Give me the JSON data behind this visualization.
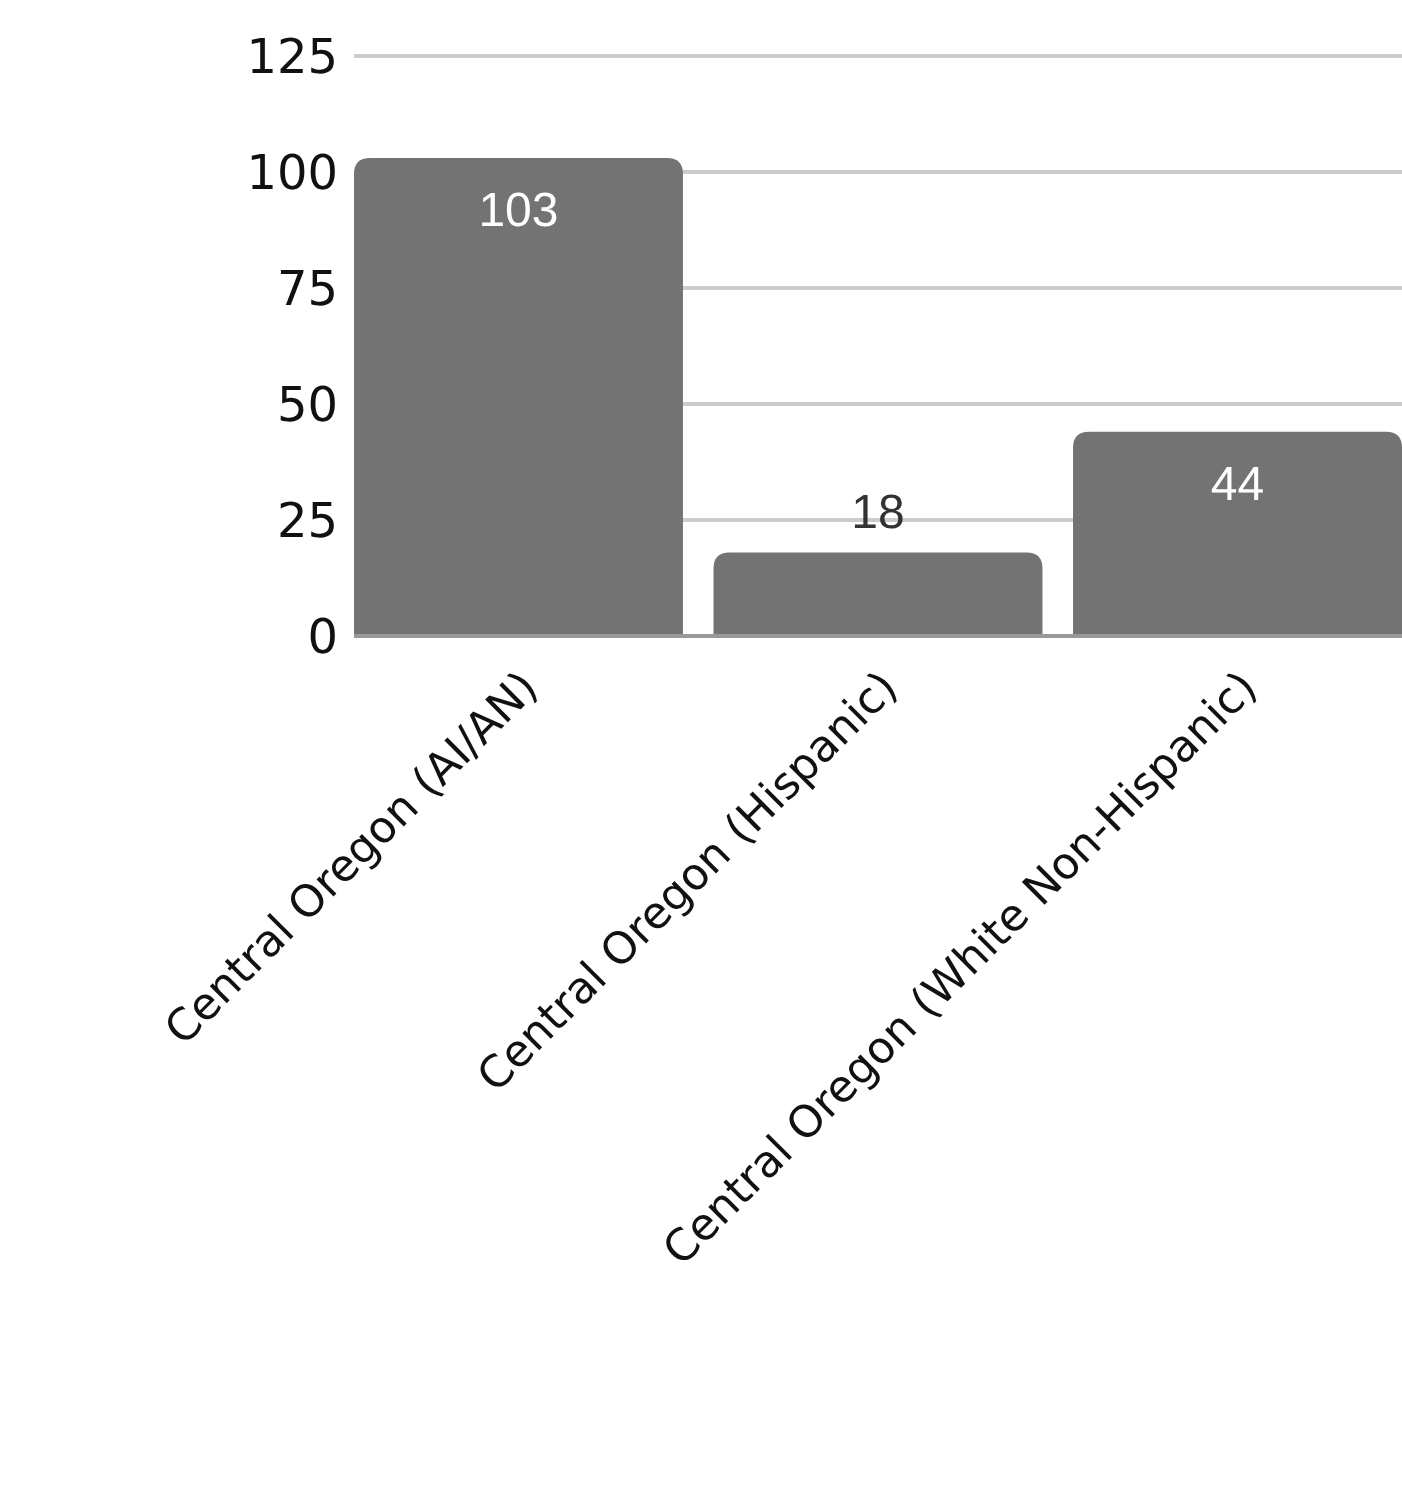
{
  "chart_data": {
    "type": "bar",
    "categories": [
      "Central Oregon (AI/AN)",
      "Central Oregon (Hispanic)",
      "Central Oregon (White Non-Hispanic)"
    ],
    "values": [
      103,
      18,
      44
    ],
    "color": "#737373",
    "ylim": [
      0,
      125
    ],
    "yticks": [
      0,
      25,
      50,
      75,
      100,
      125
    ],
    "grid": "y",
    "data_labels": true
  }
}
